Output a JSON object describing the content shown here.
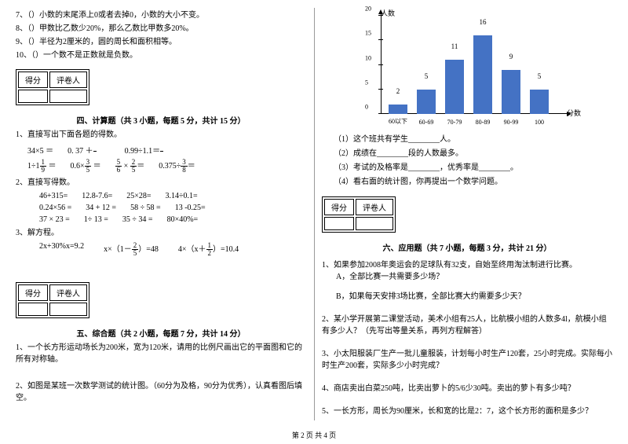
{
  "left": {
    "tf": [
      {
        "n": "7、（",
        "t": "）小数的末尾添上0或者去掉0，小数的大小不变。"
      },
      {
        "n": "8、（",
        "t": "）甲数比乙数少20%，那么乙数比甲数多20%。"
      },
      {
        "n": "9、（",
        "t": "）半径为2厘米的，圆的周长和面积相等。"
      },
      {
        "n": "10、（",
        "t": "）一个数不是正数就是负数。"
      }
    ],
    "score": {
      "a": "得分",
      "b": "评卷人"
    },
    "s4": {
      "title": "四、计算题（共 3 小题，每题 5 分，共计 15 分）",
      "q1": "1、直接写出下面各题的得数。"
    },
    "calc1": [
      {
        "t": "34×5 ＝"
      },
      {
        "t": "0. 37 ＋"
      },
      {
        "f": {
          "n": "63",
          "d": "100"
        },
        "t2": "＝"
      },
      {
        "t": "0.99÷1.1＝"
      },
      {
        "t": "10.6 － 5",
        "f": {
          "n": "3",
          "d": "5"
        },
        "t2": "＝"
      }
    ],
    "calc2": [
      {
        "t": "1÷1",
        "f": {
          "n": "1",
          "d": "9"
        },
        "t2": " ＝"
      },
      {
        "t": "0.6×",
        "f": {
          "n": "3",
          "d": "5"
        },
        "t2": " ＝"
      },
      {
        "f": {
          "n": "5",
          "d": "6"
        },
        "t": " × ",
        "f2": {
          "n": "2",
          "d": "5"
        },
        "t2": "＝"
      },
      {
        "t": "0.375÷",
        "f": {
          "n": "3",
          "d": "8"
        },
        "t2": "＝"
      }
    ],
    "q2": "2、直接写得数。",
    "calc3": [
      [
        "46+315=",
        "12.8-7.6=",
        "25×28=",
        "3.14÷0.1="
      ],
      [
        "0.24×56 =",
        "34 + 12 =",
        "58 ÷ 58 =",
        "13 -0.25="
      ],
      [
        "37 × 23 =",
        "1÷ 13 =",
        "35 ÷ 34 =",
        "80×40%="
      ]
    ],
    "q3": "3、解方程。",
    "eq": [
      {
        "t": "2x+30%x=9.2"
      },
      {
        "t": "x×（1－",
        "f": {
          "n": "2",
          "d": "5"
        },
        "t2": "）=48"
      },
      {
        "t": "4×（x＋",
        "f": {
          "n": "1",
          "d": "2"
        },
        "t2": "）=10.4"
      }
    ],
    "s5": {
      "title": "五、综合题（共 2 小题，每题 7 分，共计 14 分）"
    },
    "q5_1": "1、一个长方形运动场长为200米，宽为120米，请用的比例尺画出它的平面图和它的所有对称轴。",
    "q5_2": "2、如图是某班一次数学测试的统计图。（60分为及格，90分为优秀），认真看图后填空。"
  },
  "right": {
    "chart": {
      "ylabel": "人数",
      "xlabel": "分数",
      "ymax": 20,
      "ystep": 5,
      "categories": [
        "60以下",
        "60-69",
        "70-79",
        "80-89",
        "90-99",
        "100"
      ],
      "values": [
        2,
        5,
        11,
        16,
        9,
        5
      ],
      "bar_color": "#4472c4"
    },
    "chart_q": [
      "（1）这个班共有学生________人。",
      "（2）成绩在________段的人数最多。",
      "（3）考试的及格率是________，优秀率是________。",
      "（4）看右面的统计图，你再提出一个数学问题。"
    ],
    "score": {
      "a": "得分",
      "b": "评卷人"
    },
    "s6": {
      "title": "六、应用题（共 7 小题，每题 3 分，共计 21 分）"
    },
    "app": [
      {
        "t": "1、如果参加2008年奥运会的足球队有32支，自始至终用淘汰制进行比赛。",
        "sub": [
          "A，全部比赛一共需要多少场？",
          "B，如果每天安排3场比赛，全部比赛大约需要多少天？"
        ]
      },
      {
        "t": "2、某小学开展第二课堂活动，美术小组有25人，比航模小组的人数多4l，航模小组有多少人？（先写出等量关系，再列方程解答）"
      },
      {
        "t": "3、小太阳服装厂生产一批儿童服装，计划每小时生产120套，25小时完成。实际每小时生产200套，实际多少小时完成？"
      },
      {
        "t": "4、商店卖出白菜250吨，比卖出萝卜的5/6少30吨。卖出的萝卜有多少吨？"
      },
      {
        "t": "5、一长方形，周长为90厘米，长和宽的比是2：7，这个长方形的面积是多少？"
      }
    ]
  },
  "footer": "第 2 页 共 4 页"
}
